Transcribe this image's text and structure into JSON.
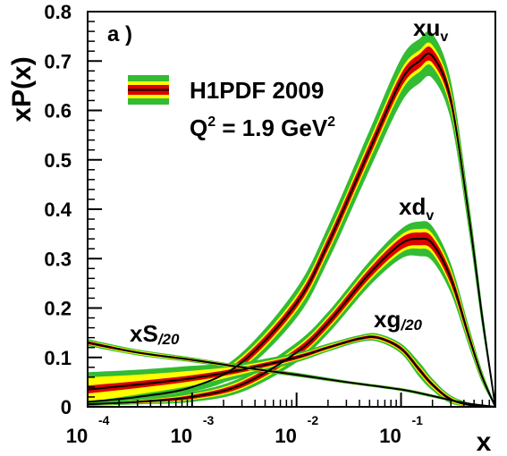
{
  "chart_data": {
    "type": "line",
    "panel_label": "a )",
    "ylabel": "xP(x)",
    "xlabel": "x",
    "xscale": "log",
    "xlim": [
      0.0001,
      0.8
    ],
    "ylim": [
      0,
      0.8
    ],
    "grid": false,
    "x_ticks": [
      {
        "base": "10",
        "exp": "-4",
        "value": 0.0001
      },
      {
        "base": "10",
        "exp": "-3",
        "value": 0.001
      },
      {
        "base": "10",
        "exp": "-2",
        "value": 0.01
      },
      {
        "base": "10",
        "exp": "-1",
        "value": 0.1
      }
    ],
    "y_ticks": [
      {
        "label": "0",
        "value": 0
      },
      {
        "label": "0.1",
        "value": 0.1
      },
      {
        "label": "0.2",
        "value": 0.2
      },
      {
        "label": "0.3",
        "value": 0.3
      },
      {
        "label": "0.4",
        "value": 0.4
      },
      {
        "label": "0.5",
        "value": 0.5
      },
      {
        "label": "0.6",
        "value": 0.6
      },
      {
        "label": "0.7",
        "value": 0.7
      },
      {
        "label": "0.8",
        "value": 0.8
      }
    ],
    "legend": {
      "position": "top-left",
      "entries": [
        "H1PDF 2009"
      ],
      "q2_text": "Q",
      "q2_sup": "2",
      "q2_value": " = 1.9 GeV",
      "q2_unit_sup": "2"
    },
    "band_colors": {
      "outer": "#33bb33",
      "middle": "#ffff00",
      "inner": "#dd0000",
      "central": "#000000"
    },
    "series": [
      {
        "name_main": "xu",
        "name_sub": "v",
        "x": [
          0.0001,
          0.0003,
          0.001,
          0.003,
          0.01,
          0.02,
          0.05,
          0.1,
          0.15,
          0.2,
          0.3,
          0.45,
          0.6,
          0.8
        ],
        "y": [
          0.01,
          0.02,
          0.04,
          0.09,
          0.21,
          0.33,
          0.52,
          0.66,
          0.7,
          0.71,
          0.62,
          0.38,
          0.18,
          0.0
        ],
        "band_outer": [
          0.003,
          0.005,
          0.01,
          0.02,
          0.03,
          0.035,
          0.04,
          0.045,
          0.045,
          0.045,
          0.04,
          0.03,
          0.02,
          0.005
        ],
        "band_middle": [
          0.002,
          0.003,
          0.006,
          0.012,
          0.016,
          0.018,
          0.02,
          0.022,
          0.022,
          0.022,
          0.02,
          0.015,
          0.01,
          0.003
        ],
        "band_inner": [
          0.001,
          0.002,
          0.004,
          0.008,
          0.01,
          0.012,
          0.013,
          0.014,
          0.014,
          0.014,
          0.013,
          0.01,
          0.007,
          0.002
        ]
      },
      {
        "name_main": "xd",
        "name_sub": "v",
        "x": [
          0.0001,
          0.0003,
          0.001,
          0.003,
          0.01,
          0.02,
          0.05,
          0.1,
          0.15,
          0.2,
          0.3,
          0.45,
          0.6,
          0.8
        ],
        "y": [
          0.005,
          0.01,
          0.02,
          0.045,
          0.11,
          0.17,
          0.27,
          0.33,
          0.34,
          0.33,
          0.26,
          0.14,
          0.06,
          0.0
        ],
        "band_outer": [
          0.003,
          0.005,
          0.01,
          0.015,
          0.02,
          0.022,
          0.025,
          0.03,
          0.035,
          0.035,
          0.03,
          0.02,
          0.012,
          0.004
        ],
        "band_middle": [
          0.002,
          0.003,
          0.006,
          0.009,
          0.012,
          0.013,
          0.015,
          0.018,
          0.02,
          0.02,
          0.018,
          0.012,
          0.007,
          0.002
        ],
        "band_inner": [
          0.001,
          0.002,
          0.004,
          0.006,
          0.008,
          0.009,
          0.01,
          0.012,
          0.013,
          0.013,
          0.012,
          0.008,
          0.005,
          0.002
        ]
      },
      {
        "name_main": "xg",
        "name_sub": "/20",
        "x": [
          0.0001,
          0.0003,
          0.001,
          0.003,
          0.01,
          0.02,
          0.04,
          0.06,
          0.1,
          0.15,
          0.2,
          0.3,
          0.5,
          0.8
        ],
        "y": [
          0.035,
          0.045,
          0.058,
          0.075,
          0.1,
          0.12,
          0.138,
          0.14,
          0.118,
          0.075,
          0.045,
          0.015,
          0.002,
          0.0
        ],
        "band_outer": [
          0.035,
          0.03,
          0.025,
          0.015,
          0.01,
          0.008,
          0.007,
          0.008,
          0.01,
          0.015,
          0.012,
          0.008,
          0.004,
          0.002
        ],
        "band_middle": [
          0.025,
          0.02,
          0.015,
          0.009,
          0.006,
          0.005,
          0.004,
          0.005,
          0.006,
          0.008,
          0.007,
          0.005,
          0.002,
          0.001
        ],
        "band_inner": [
          0.008,
          0.007,
          0.006,
          0.005,
          0.004,
          0.003,
          0.003,
          0.003,
          0.004,
          0.005,
          0.004,
          0.003,
          0.001,
          0.001
        ]
      },
      {
        "name_main": "xS",
        "name_sub": "/20",
        "x": [
          0.0001,
          0.0003,
          0.001,
          0.003,
          0.01,
          0.03,
          0.1,
          0.2,
          0.4,
          0.8
        ],
        "y": [
          0.13,
          0.11,
          0.095,
          0.08,
          0.065,
          0.05,
          0.035,
          0.022,
          0.008,
          0.0
        ],
        "band_outer": [
          0.007,
          0.006,
          0.005,
          0.004,
          0.004,
          0.003,
          0.003,
          0.003,
          0.002,
          0.001
        ],
        "band_middle": [
          0.004,
          0.004,
          0.003,
          0.003,
          0.002,
          0.002,
          0.002,
          0.002,
          0.001,
          0.001
        ],
        "band_inner": [
          0.003,
          0.002,
          0.002,
          0.002,
          0.002,
          0.001,
          0.001,
          0.001,
          0.001,
          0.001
        ]
      }
    ]
  }
}
